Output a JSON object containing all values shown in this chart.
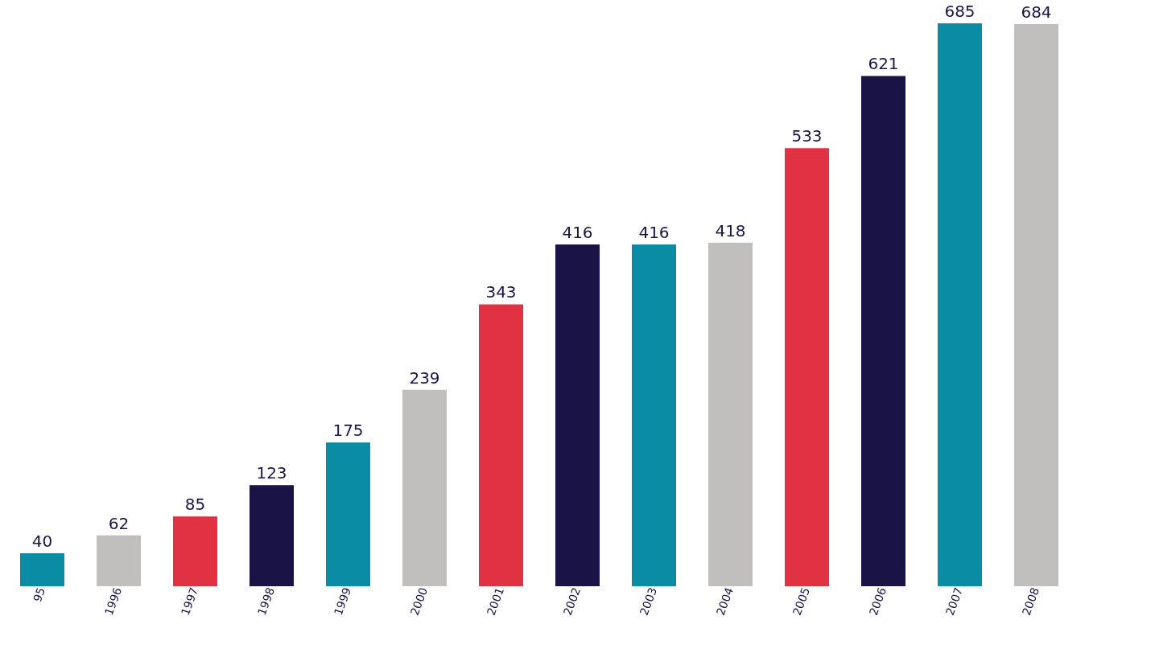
{
  "chart_data": {
    "type": "bar",
    "categories": [
      "95",
      "1996",
      "1997",
      "1998",
      "1999",
      "2000",
      "2001",
      "2002",
      "2003",
      "2004",
      "2005",
      "2006",
      "2007",
      "2008"
    ],
    "values": [
      40,
      62,
      85,
      123,
      175,
      239,
      343,
      416,
      416,
      418,
      533,
      621,
      685,
      684
    ],
    "colors": [
      "#0a8ca5",
      "#c0bfbd",
      "#e03242",
      "#1a1446",
      "#0a8ca5",
      "#c0bfbd",
      "#e03242",
      "#1a1446",
      "#0a8ca5",
      "#c0bfbd",
      "#e03242",
      "#1a1446",
      "#0a8ca5",
      "#c0bfbd"
    ],
    "data_labels": true,
    "grid": false,
    "legend": false
  }
}
